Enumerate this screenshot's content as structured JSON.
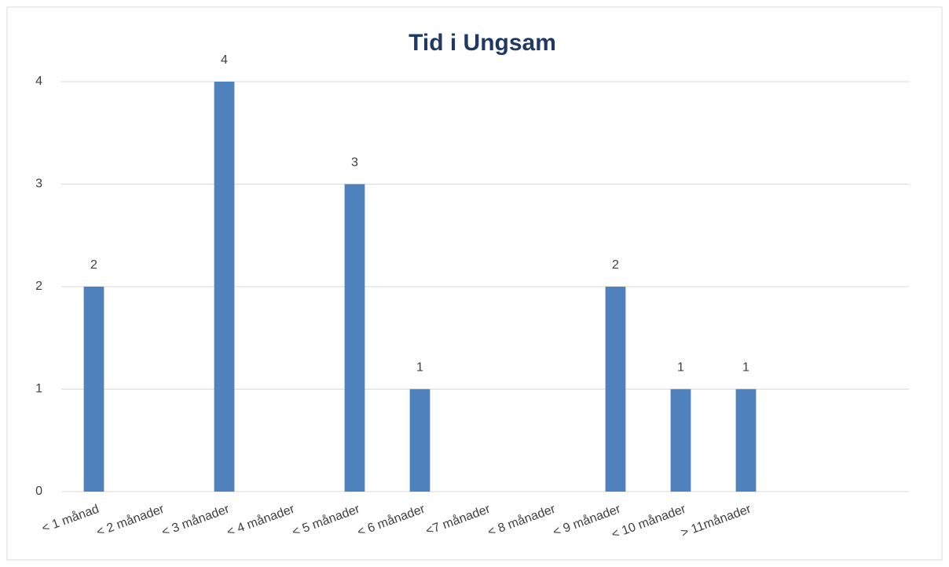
{
  "chart_data": {
    "type": "bar",
    "title": "Tid i Ungsam",
    "categories": [
      "< 1 månad",
      "< 2 månader",
      "< 3 månader",
      "< 4 månader",
      "< 5 månader",
      "< 6 månader",
      "<7 månader",
      "< 8 månader",
      "< 9 månader",
      "< 10 månader",
      "> 11månader",
      null,
      null
    ],
    "values": [
      2,
      null,
      4,
      null,
      3,
      1,
      null,
      null,
      2,
      1,
      1,
      null,
      null
    ],
    "color": "#4f81bd",
    "ylim": [
      0,
      4
    ],
    "yticks": [
      0,
      1,
      2,
      3,
      4
    ],
    "grid": true
  }
}
